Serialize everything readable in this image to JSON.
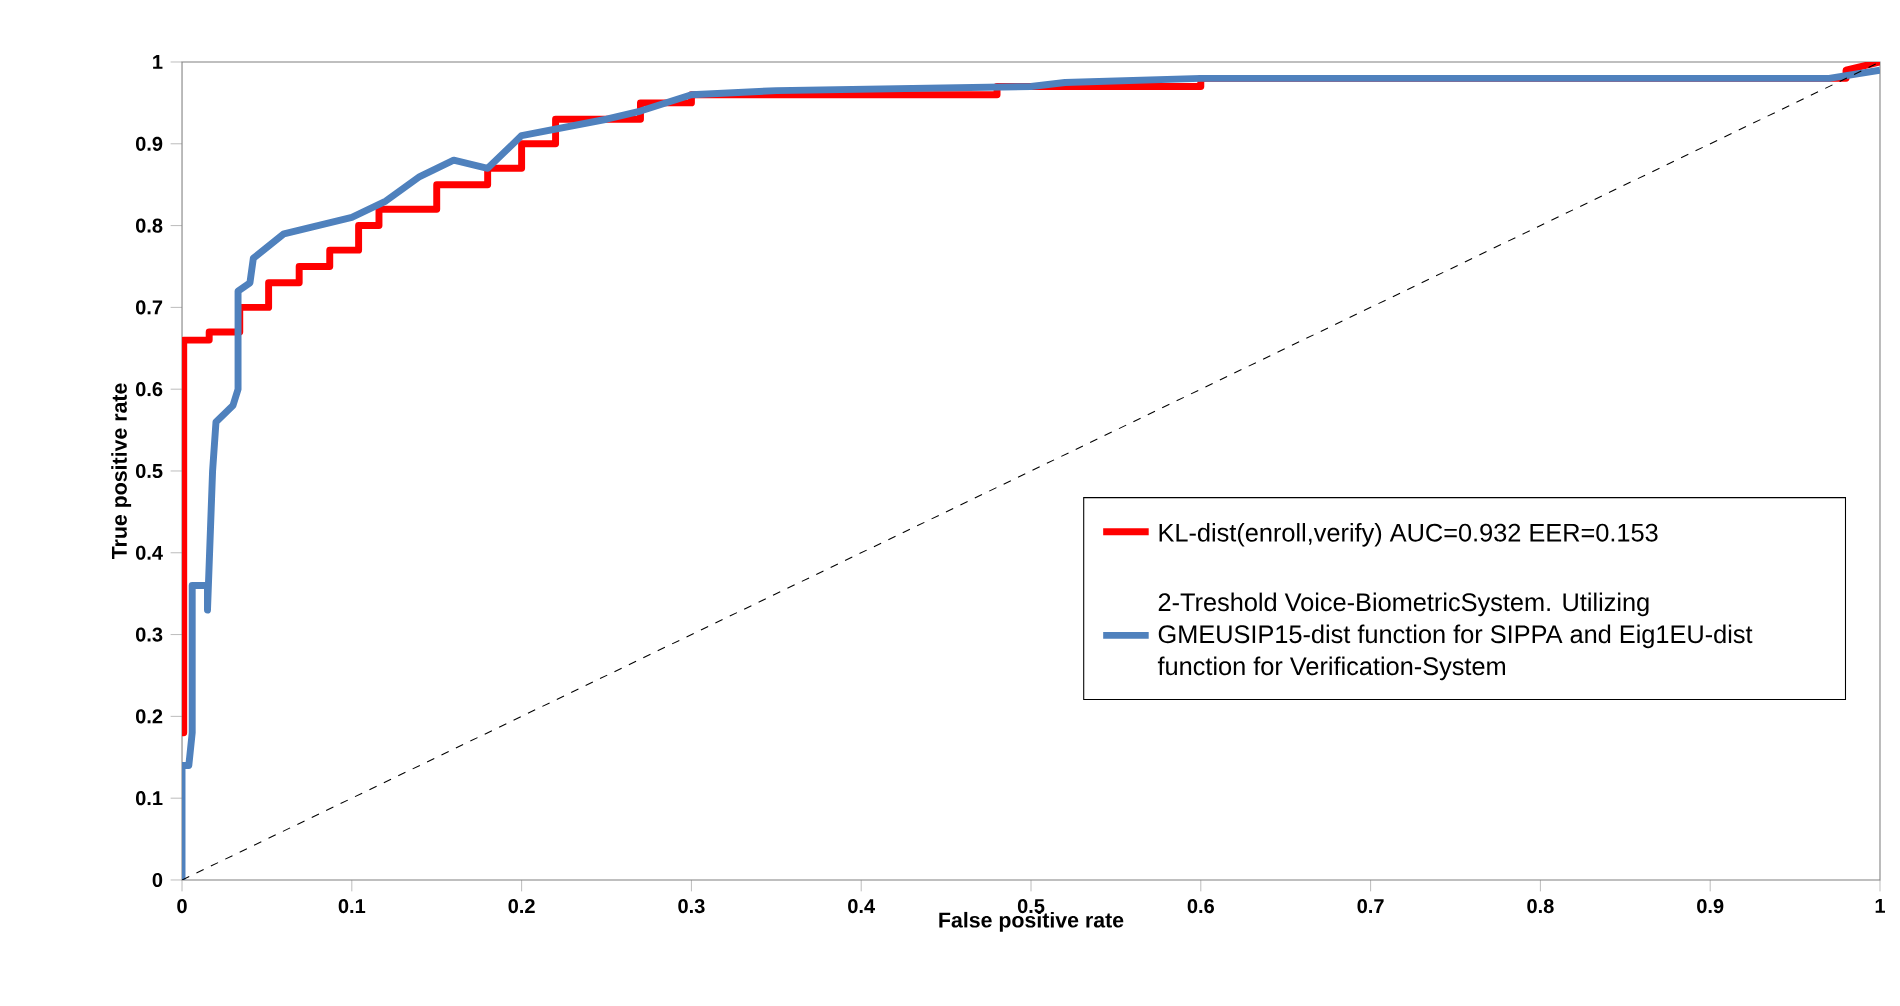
{
  "chart_data": {
    "type": "line",
    "xlabel": "False positive rate",
    "ylabel": "True positive rate",
    "xlim": [
      0,
      1
    ],
    "ylim": [
      0,
      1
    ],
    "xticks": [
      0,
      0.1,
      0.2,
      0.3,
      0.4,
      0.5,
      0.6,
      0.7,
      0.8,
      0.9,
      1
    ],
    "yticks": [
      0,
      0.1,
      0.2,
      0.3,
      0.4,
      0.5,
      0.6,
      0.7,
      0.8,
      0.9,
      1
    ],
    "grid": false,
    "legend": "right",
    "marker": "none",
    "series": [
      {
        "name": "KL-dist(enroll,verify) AUC=0.932 EER=0.153",
        "color": "#ff0000",
        "line_style": "solid",
        "x": [
          0,
          0.001,
          0.001,
          0.016,
          0.016,
          0.034,
          0.034,
          0.051,
          0.051,
          0.069,
          0.069,
          0.087,
          0.087,
          0.104,
          0.104,
          0.116,
          0.116,
          0.15,
          0.15,
          0.18,
          0.18,
          0.2,
          0.2,
          0.22,
          0.22,
          0.27,
          0.27,
          0.3,
          0.3,
          0.48,
          0.48,
          0.6,
          0.6,
          0.98,
          0.98,
          1
        ],
        "values": [
          0.18,
          0.18,
          0.66,
          0.66,
          0.67,
          0.67,
          0.7,
          0.7,
          0.73,
          0.73,
          0.75,
          0.75,
          0.77,
          0.77,
          0.8,
          0.8,
          0.82,
          0.82,
          0.85,
          0.85,
          0.87,
          0.87,
          0.9,
          0.9,
          0.93,
          0.93,
          0.95,
          0.95,
          0.96,
          0.96,
          0.97,
          0.97,
          0.98,
          0.98,
          0.99,
          1
        ]
      },
      {
        "name": "2-Treshold Voice-BiometricSystem. Utilizing GMEUSIP15-dist function for SIPPA and Eig1EU-dist function for Verification-System",
        "color": "#4f81bd",
        "line_style": "solid",
        "x": [
          0,
          0,
          0.004,
          0.006,
          0.006,
          0.015,
          0.015,
          0.018,
          0.02,
          0.025,
          0.03,
          0.033,
          0.033,
          0.04,
          0.042,
          0.06,
          0.08,
          0.1,
          0.12,
          0.14,
          0.16,
          0.18,
          0.2,
          0.25,
          0.27,
          0.3,
          0.35,
          0.5,
          0.52,
          0.6,
          0.97,
          1
        ],
        "values": [
          0,
          0.14,
          0.14,
          0.18,
          0.36,
          0.36,
          0.33,
          0.5,
          0.56,
          0.57,
          0.58,
          0.6,
          0.72,
          0.73,
          0.76,
          0.79,
          0.8,
          0.81,
          0.83,
          0.86,
          0.88,
          0.87,
          0.91,
          0.93,
          0.94,
          0.96,
          0.965,
          0.97,
          0.975,
          0.98,
          0.98,
          0.99
        ]
      },
      {
        "color": "#000000",
        "line_style": "dashed",
        "x": [
          0,
          1
        ],
        "values": [
          0,
          1
        ]
      }
    ]
  }
}
